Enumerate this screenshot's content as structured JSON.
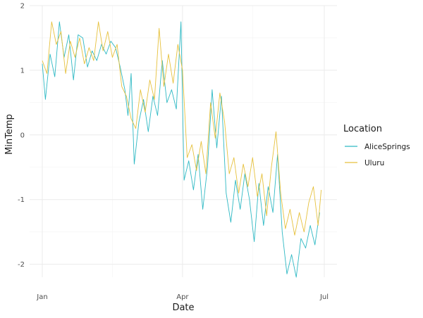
{
  "chart_data": {
    "type": "line",
    "title": "",
    "xlabel": "Date",
    "ylabel": "MinTemp",
    "x_axis": {
      "type": "date",
      "range": [
        "2017-01-01",
        "2017-07-01"
      ],
      "ticks": [
        {
          "date": "2017-01-01",
          "label": "Jan"
        },
        {
          "date": "2017-04-01",
          "label": "Apr"
        },
        {
          "date": "2017-07-01",
          "label": "Jul"
        }
      ],
      "minor_ticks": [
        "2017-02-15",
        "2017-05-16"
      ]
    },
    "y_axis": {
      "range": [
        -2.2,
        2.0
      ],
      "ticks": [
        {
          "value": 2,
          "label": "2"
        },
        {
          "value": 1,
          "label": "1"
        },
        {
          "value": 0,
          "label": "0"
        },
        {
          "value": -1,
          "label": "-1"
        },
        {
          "value": -2,
          "label": "-2"
        }
      ],
      "minor_ticks": [
        1.5,
        0.5,
        -0.5,
        -1.5
      ]
    },
    "grid": true,
    "legend": {
      "title": "Location",
      "position": "right"
    },
    "series": [
      {
        "name": "AliceSprings",
        "color": "#2fb9c4",
        "points": [
          [
            "2017-01-01",
            1.1
          ],
          [
            "2017-01-03",
            0.55
          ],
          [
            "2017-01-06",
            1.25
          ],
          [
            "2017-01-09",
            0.9
          ],
          [
            "2017-01-12",
            1.75
          ],
          [
            "2017-01-15",
            1.2
          ],
          [
            "2017-01-18",
            1.55
          ],
          [
            "2017-01-21",
            0.85
          ],
          [
            "2017-01-24",
            1.55
          ],
          [
            "2017-01-27",
            1.5
          ],
          [
            "2017-01-30",
            1.05
          ],
          [
            "2017-02-02",
            1.3
          ],
          [
            "2017-02-05",
            1.15
          ],
          [
            "2017-02-08",
            1.4
          ],
          [
            "2017-02-11",
            1.25
          ],
          [
            "2017-02-14",
            1.45
          ],
          [
            "2017-02-17",
            1.35
          ],
          [
            "2017-02-20",
            1.05
          ],
          [
            "2017-02-23",
            0.7
          ],
          [
            "2017-02-25",
            0.3
          ],
          [
            "2017-02-27",
            0.95
          ],
          [
            "2017-03-01",
            -0.45
          ],
          [
            "2017-03-04",
            0.2
          ],
          [
            "2017-03-07",
            0.55
          ],
          [
            "2017-03-10",
            0.05
          ],
          [
            "2017-03-13",
            0.6
          ],
          [
            "2017-03-16",
            0.3
          ],
          [
            "2017-03-19",
            1.15
          ],
          [
            "2017-03-22",
            0.5
          ],
          [
            "2017-03-25",
            0.7
          ],
          [
            "2017-03-28",
            0.4
          ],
          [
            "2017-03-31",
            1.75
          ],
          [
            "2017-04-02",
            -0.7
          ],
          [
            "2017-04-05",
            -0.4
          ],
          [
            "2017-04-08",
            -0.85
          ],
          [
            "2017-04-11",
            -0.3
          ],
          [
            "2017-04-14",
            -1.15
          ],
          [
            "2017-04-17",
            -0.5
          ],
          [
            "2017-04-20",
            0.7
          ],
          [
            "2017-04-23",
            -0.2
          ],
          [
            "2017-04-26",
            0.6
          ],
          [
            "2017-04-29",
            -0.9
          ],
          [
            "2017-05-02",
            -1.35
          ],
          [
            "2017-05-05",
            -0.7
          ],
          [
            "2017-05-08",
            -1.15
          ],
          [
            "2017-05-11",
            -0.6
          ],
          [
            "2017-05-14",
            -1.0
          ],
          [
            "2017-05-17",
            -1.65
          ],
          [
            "2017-05-20",
            -0.75
          ],
          [
            "2017-05-23",
            -1.4
          ],
          [
            "2017-05-26",
            -0.8
          ],
          [
            "2017-05-29",
            -1.2
          ],
          [
            "2017-06-01",
            -0.3
          ],
          [
            "2017-06-04",
            -1.5
          ],
          [
            "2017-06-07",
            -2.15
          ],
          [
            "2017-06-10",
            -1.85
          ],
          [
            "2017-06-13",
            -2.2
          ],
          [
            "2017-06-16",
            -1.6
          ],
          [
            "2017-06-19",
            -1.75
          ],
          [
            "2017-06-22",
            -1.4
          ],
          [
            "2017-06-25",
            -1.7
          ],
          [
            "2017-06-28",
            -1.2
          ]
        ]
      },
      {
        "name": "Uluru",
        "color": "#e6c13d",
        "points": [
          [
            "2017-01-01",
            1.15
          ],
          [
            "2017-01-04",
            0.95
          ],
          [
            "2017-01-07",
            1.75
          ],
          [
            "2017-01-10",
            1.4
          ],
          [
            "2017-01-13",
            1.6
          ],
          [
            "2017-01-16",
            0.95
          ],
          [
            "2017-01-19",
            1.45
          ],
          [
            "2017-01-22",
            1.2
          ],
          [
            "2017-01-25",
            1.5
          ],
          [
            "2017-01-28",
            1.1
          ],
          [
            "2017-01-31",
            1.35
          ],
          [
            "2017-02-03",
            1.15
          ],
          [
            "2017-02-06",
            1.75
          ],
          [
            "2017-02-09",
            1.3
          ],
          [
            "2017-02-12",
            1.6
          ],
          [
            "2017-02-15",
            1.2
          ],
          [
            "2017-02-18",
            1.4
          ],
          [
            "2017-02-21",
            0.75
          ],
          [
            "2017-02-24",
            0.6
          ],
          [
            "2017-02-27",
            0.25
          ],
          [
            "2017-03-02",
            0.1
          ],
          [
            "2017-03-05",
            0.7
          ],
          [
            "2017-03-08",
            0.35
          ],
          [
            "2017-03-11",
            0.85
          ],
          [
            "2017-03-14",
            0.55
          ],
          [
            "2017-03-17",
            1.65
          ],
          [
            "2017-03-20",
            0.75
          ],
          [
            "2017-03-23",
            1.25
          ],
          [
            "2017-03-26",
            0.8
          ],
          [
            "2017-03-29",
            1.4
          ],
          [
            "2017-04-01",
            1.0
          ],
          [
            "2017-04-04",
            -0.35
          ],
          [
            "2017-04-07",
            -0.15
          ],
          [
            "2017-04-10",
            -0.55
          ],
          [
            "2017-04-13",
            -0.1
          ],
          [
            "2017-04-16",
            -0.6
          ],
          [
            "2017-04-19",
            0.5
          ],
          [
            "2017-04-22",
            -0.05
          ],
          [
            "2017-04-25",
            0.65
          ],
          [
            "2017-04-28",
            0.2
          ],
          [
            "2017-05-01",
            -0.6
          ],
          [
            "2017-05-04",
            -0.35
          ],
          [
            "2017-05-07",
            -0.9
          ],
          [
            "2017-05-10",
            -0.45
          ],
          [
            "2017-05-13",
            -0.8
          ],
          [
            "2017-05-16",
            -0.35
          ],
          [
            "2017-05-19",
            -0.95
          ],
          [
            "2017-05-22",
            -0.6
          ],
          [
            "2017-05-25",
            -1.25
          ],
          [
            "2017-05-28",
            -0.5
          ],
          [
            "2017-05-31",
            0.05
          ],
          [
            "2017-06-03",
            -0.9
          ],
          [
            "2017-06-06",
            -1.45
          ],
          [
            "2017-06-09",
            -1.15
          ],
          [
            "2017-06-12",
            -1.55
          ],
          [
            "2017-06-15",
            -1.2
          ],
          [
            "2017-06-18",
            -1.5
          ],
          [
            "2017-06-21",
            -1.05
          ],
          [
            "2017-06-24",
            -0.8
          ],
          [
            "2017-06-27",
            -1.4
          ],
          [
            "2017-06-29",
            -0.85
          ]
        ]
      }
    ]
  }
}
